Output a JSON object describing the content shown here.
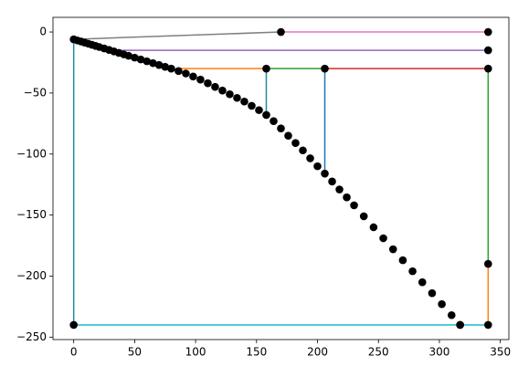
{
  "chart_data": {
    "type": "line",
    "xlim": [
      -17,
      357
    ],
    "ylim": [
      -252,
      12
    ],
    "xticks": [
      0,
      50,
      100,
      150,
      200,
      250,
      300,
      350
    ],
    "yticks": [
      {
        "value": 0,
        "label": "0"
      },
      {
        "value": -50,
        "label": "−50"
      },
      {
        "value": -100,
        "label": "−100"
      },
      {
        "value": -150,
        "label": "−150"
      },
      {
        "value": -200,
        "label": "−200"
      },
      {
        "value": -250,
        "label": "−250"
      }
    ],
    "series": [
      {
        "color": "#7f7f7f",
        "x": [
          0,
          170
        ],
        "values": [
          -6,
          0
        ],
        "line": true,
        "marker": false
      },
      {
        "color": "#e377c2",
        "x": [
          170,
          340
        ],
        "values": [
          0,
          0
        ],
        "line": true,
        "marker": false
      },
      {
        "color": "#9467bd",
        "x": [
          33,
          340
        ],
        "values": [
          -15,
          -15
        ],
        "line": true,
        "marker": false
      },
      {
        "color": "#ff7f0e",
        "x": [
          85,
          158
        ],
        "values": [
          -30,
          -30
        ],
        "line": true,
        "marker": false
      },
      {
        "color": "#2ca02c",
        "x": [
          158,
          206
        ],
        "values": [
          -30,
          -30
        ],
        "line": true,
        "marker": false
      },
      {
        "color": "#d62728",
        "x": [
          206,
          340
        ],
        "values": [
          -30,
          -30
        ],
        "line": true,
        "marker": false
      },
      {
        "color": "#2ca02c",
        "x": [
          340,
          340
        ],
        "values": [
          -30,
          -190
        ],
        "line": true,
        "marker": false
      },
      {
        "color": "#ff7f0e",
        "x": [
          340,
          340
        ],
        "values": [
          -190,
          -240
        ],
        "line": true,
        "marker": false
      },
      {
        "color": "#1f8ba0",
        "x": [
          0,
          0
        ],
        "values": [
          -6,
          -240
        ],
        "line": true,
        "marker": false
      },
      {
        "color": "#1f8ba0",
        "x": [
          158,
          158
        ],
        "values": [
          -30,
          -68
        ],
        "line": true,
        "marker": false
      },
      {
        "color": "#1f77b4",
        "x": [
          206,
          206
        ],
        "values": [
          -30,
          -116
        ],
        "line": true,
        "marker": false
      },
      {
        "color": "#17becf",
        "x": [
          0,
          340
        ],
        "values": [
          -240,
          -240
        ],
        "line": true,
        "marker": false
      },
      {
        "color": "#000000",
        "line": false,
        "marker": true,
        "x": [
          0,
          3,
          6,
          9,
          12,
          15,
          18,
          21,
          25,
          29,
          33,
          37,
          41,
          45,
          50,
          55,
          60,
          65,
          70,
          75,
          80,
          86,
          92,
          98,
          104,
          110,
          116,
          122,
          128,
          134,
          140,
          146,
          152,
          158,
          164,
          170,
          176,
          182,
          188,
          194,
          200,
          206,
          212,
          218,
          224,
          230,
          238,
          246,
          254,
          262,
          270,
          278,
          286,
          294,
          302,
          310,
          317
        ],
        "values": [
          -6,
          -6.9,
          -7.8,
          -8.7,
          -9.6,
          -10.5,
          -11.4,
          -12.3,
          -13.5,
          -14.7,
          -15.9,
          -17.1,
          -18.3,
          -19.5,
          -21,
          -22.5,
          -24,
          -25.5,
          -27,
          -28.5,
          -30,
          -32,
          -34,
          -36.5,
          -39,
          -42,
          -45,
          -48,
          -51,
          -54,
          -57,
          -60.5,
          -64,
          -68,
          -73,
          -79,
          -85,
          -91,
          -97,
          -103.5,
          -110,
          -116,
          -122.5,
          -129,
          -135.5,
          -142,
          -151,
          -160,
          -169,
          -178,
          -187,
          -196,
          -205,
          -214,
          -223,
          -232,
          -240
        ]
      },
      {
        "color": "#000000",
        "line": false,
        "marker": true,
        "x": [
          170,
          340,
          340,
          340,
          340,
          340,
          0,
          317,
          158,
          206
        ],
        "values": [
          0,
          0,
          -15,
          -30,
          -190,
          -240,
          -240,
          -240,
          -30,
          -30
        ]
      }
    ]
  }
}
